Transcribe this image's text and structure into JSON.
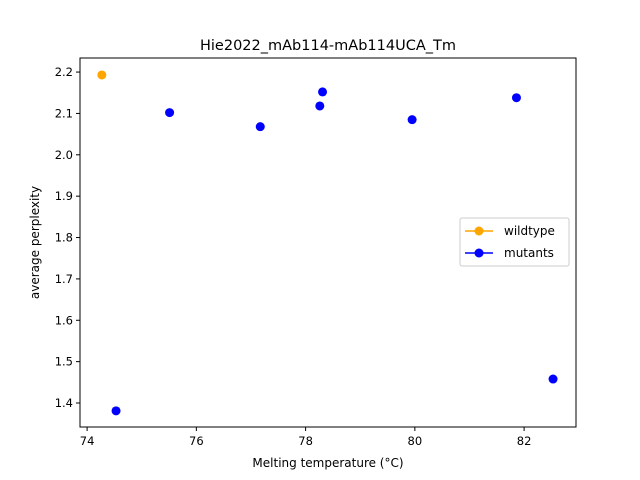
{
  "chart_data": {
    "type": "scatter",
    "title": "Hie2022_mAb114-mAb114UCA_Tm",
    "xlabel": "Melting temperature (°C)",
    "ylabel": "average perplexity",
    "xlim": [
      73.87,
      82.95
    ],
    "ylim": [
      1.342,
      2.234
    ],
    "xticks": [
      74,
      76,
      78,
      80,
      82
    ],
    "xtick_labels": [
      "74",
      "76",
      "78",
      "80",
      "82"
    ],
    "yticks": [
      1.4,
      1.5,
      1.6,
      1.7,
      1.8,
      1.9,
      2.0,
      2.1,
      2.2
    ],
    "ytick_labels": [
      "1.4",
      "1.5",
      "1.6",
      "1.7",
      "1.8",
      "1.9",
      "2.0",
      "2.1",
      "2.2"
    ],
    "grid": false,
    "legend_position": "center-right",
    "series": [
      {
        "name": "wildtype",
        "color": "#ffa500",
        "points": [
          {
            "x": 74.27,
            "y": 2.193
          }
        ]
      },
      {
        "name": "mutants",
        "color": "#0000ff",
        "points": [
          {
            "x": 74.53,
            "y": 1.381
          },
          {
            "x": 75.51,
            "y": 2.102
          },
          {
            "x": 77.17,
            "y": 2.068
          },
          {
            "x": 78.26,
            "y": 2.118
          },
          {
            "x": 78.31,
            "y": 2.152
          },
          {
            "x": 79.95,
            "y": 2.085
          },
          {
            "x": 81.86,
            "y": 2.138
          },
          {
            "x": 82.53,
            "y": 1.458
          }
        ]
      }
    ]
  }
}
